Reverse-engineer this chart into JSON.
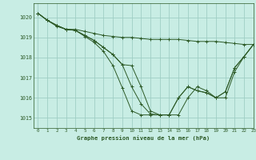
{
  "background_color": "#c8ede4",
  "grid_color": "#a0cfc4",
  "line_color": "#2d5a27",
  "title": "Graphe pression niveau de la mer (hPa)",
  "xlim": [
    -0.5,
    23
  ],
  "ylim": [
    1014.5,
    1020.7
  ],
  "yticks": [
    1015,
    1016,
    1017,
    1018,
    1019,
    1020
  ],
  "xticks": [
    0,
    1,
    2,
    3,
    4,
    5,
    6,
    7,
    8,
    9,
    10,
    11,
    12,
    13,
    14,
    15,
    16,
    17,
    18,
    19,
    20,
    21,
    22,
    23
  ],
  "series": [
    [
      1020.2,
      1019.85,
      1019.6,
      1019.4,
      1019.4,
      1019.3,
      1019.2,
      1019.1,
      1019.05,
      1019.0,
      1019.0,
      1018.95,
      1018.9,
      1018.9,
      1018.9,
      1018.9,
      1018.85,
      1018.8,
      1018.8,
      1018.8,
      1018.75,
      1018.7,
      1018.65,
      1018.65
    ],
    [
      1020.2,
      1019.85,
      1019.6,
      1019.4,
      1019.35,
      1019.1,
      1018.85,
      1018.5,
      1018.15,
      1017.65,
      1017.6,
      1016.55,
      1015.35,
      1015.15,
      1015.15,
      1016.0,
      1016.55,
      1016.35,
      1016.25,
      1016.0,
      1016.3,
      1017.5,
      1018.05,
      1018.65
    ],
    [
      1020.2,
      1019.85,
      1019.6,
      1019.4,
      1019.35,
      1019.1,
      1018.85,
      1018.5,
      1018.15,
      1017.65,
      1016.55,
      1015.7,
      1015.2,
      1015.15,
      1015.15,
      1015.15,
      1016.0,
      1016.55,
      1016.35,
      1016.0,
      1016.0,
      1017.3,
      1018.05,
      1018.65
    ],
    [
      1020.2,
      1019.85,
      1019.55,
      1019.4,
      1019.35,
      1019.05,
      1018.75,
      1018.3,
      1017.6,
      1016.5,
      1015.35,
      1015.15,
      1015.15,
      1015.15,
      1015.15,
      1016.0,
      1016.55,
      1016.35,
      1016.25,
      1016.0,
      1016.3,
      1017.5,
      1018.05,
      1018.65
    ]
  ]
}
